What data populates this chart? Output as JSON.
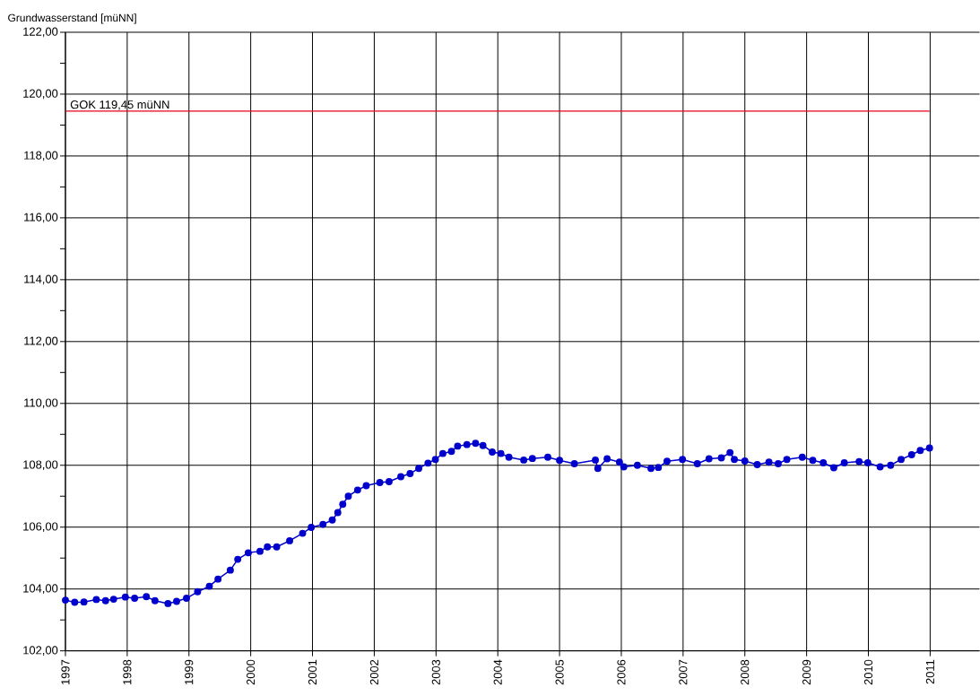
{
  "chart_data": {
    "type": "line",
    "ylabel": "Grundwasserstand [müNN]",
    "xlim": [
      1997,
      2011.8
    ],
    "xticks": [
      1997,
      1998,
      1999,
      2000,
      2001,
      2002,
      2003,
      2004,
      2005,
      2006,
      2007,
      2008,
      2009,
      2010,
      2011
    ],
    "ylim": [
      102,
      122
    ],
    "yticks": [
      {
        "value": 102,
        "label": "102,00"
      },
      {
        "value": 103,
        "label": null
      },
      {
        "value": 104,
        "label": "104,00"
      },
      {
        "value": 105,
        "label": null
      },
      {
        "value": 106,
        "label": "106,00"
      },
      {
        "value": 107,
        "label": null
      },
      {
        "value": 108,
        "label": "108,00"
      },
      {
        "value": 109,
        "label": null
      },
      {
        "value": 110,
        "label": "110,00"
      },
      {
        "value": 111,
        "label": null
      },
      {
        "value": 112,
        "label": "112,00"
      },
      {
        "value": 113,
        "label": null
      },
      {
        "value": 114,
        "label": "114,00"
      },
      {
        "value": 115,
        "label": null
      },
      {
        "value": 116,
        "label": "116,00"
      },
      {
        "value": 117,
        "label": null
      },
      {
        "value": 118,
        "label": "118,00"
      },
      {
        "value": 119,
        "label": null
      },
      {
        "value": 120,
        "label": "120,00"
      },
      {
        "value": 121,
        "label": null
      },
      {
        "value": 122,
        "label": "122,00"
      }
    ],
    "grid": true,
    "marker": "circle",
    "line_style": "solid",
    "ref_lines": [
      {
        "axis": "y",
        "value": 119.45,
        "label": "GOK 119,45 müNN",
        "color": "#e8001c"
      }
    ],
    "x": [
      1997.0,
      1997.15,
      1997.3,
      1997.5,
      1997.65,
      1997.78,
      1997.97,
      1998.12,
      1998.31,
      1998.45,
      1998.66,
      1998.8,
      1998.96,
      1999.14,
      1999.33,
      1999.47,
      1999.67,
      1999.79,
      1999.96,
      2000.15,
      2000.27,
      2000.42,
      2000.63,
      2000.84,
      2000.98,
      2001.17,
      2001.32,
      2001.41,
      2001.49,
      2001.58,
      2001.73,
      2001.87,
      2002.09,
      2002.24,
      2002.43,
      2002.58,
      2002.72,
      2002.87,
      2002.99,
      2003.11,
      2003.25,
      2003.35,
      2003.5,
      2003.64,
      2003.76,
      2003.91,
      2004.05,
      2004.18,
      2004.42,
      2004.56,
      2004.81,
      2005.0,
      2005.24,
      2005.58,
      2005.62,
      2005.77,
      2005.97,
      2006.04,
      2006.26,
      2006.48,
      2006.6,
      2006.74,
      2006.99,
      2007.23,
      2007.42,
      2007.62,
      2007.76,
      2007.83,
      2008.0,
      2008.2,
      2008.39,
      2008.54,
      2008.68,
      2008.93,
      2009.1,
      2009.27,
      2009.44,
      2009.61,
      2009.85,
      2009.99,
      2010.19,
      2010.36,
      2010.53,
      2010.7,
      2010.84,
      2010.99
    ],
    "series": [
      {
        "color": "#0000cc",
        "values": [
          103.64,
          103.57,
          103.58,
          103.66,
          103.62,
          103.67,
          103.74,
          103.7,
          103.75,
          103.62,
          103.53,
          103.6,
          103.7,
          103.91,
          104.09,
          104.32,
          104.61,
          104.96,
          105.17,
          105.22,
          105.36,
          105.36,
          105.56,
          105.8,
          105.99,
          106.09,
          106.23,
          106.47,
          106.74,
          107.0,
          107.2,
          107.34,
          107.44,
          107.47,
          107.63,
          107.73,
          107.9,
          108.07,
          108.19,
          108.38,
          108.45,
          108.62,
          108.67,
          108.71,
          108.64,
          108.43,
          108.38,
          108.26,
          108.17,
          108.22,
          108.26,
          108.16,
          108.05,
          108.17,
          107.9,
          108.21,
          108.1,
          107.95,
          108.0,
          107.9,
          107.93,
          108.13,
          108.19,
          108.05,
          108.21,
          108.24,
          108.41,
          108.19,
          108.14,
          108.02,
          108.1,
          108.05,
          108.19,
          108.26,
          108.16,
          108.08,
          107.92,
          108.08,
          108.12,
          108.08,
          107.95,
          108.0,
          108.19,
          108.34,
          108.48,
          108.56
        ]
      }
    ]
  }
}
